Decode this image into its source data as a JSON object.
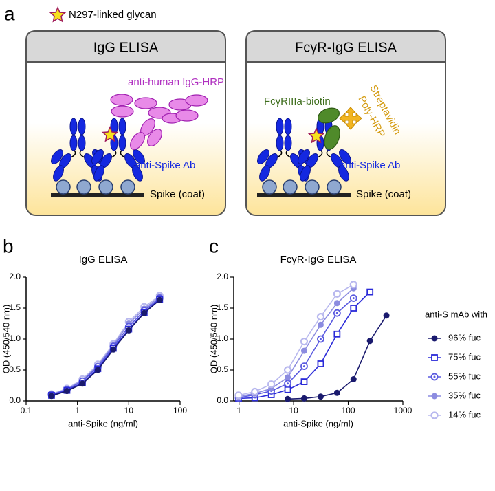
{
  "panels": {
    "a": "a",
    "b": "b",
    "c": "c"
  },
  "legend_star": "N297-linked glycan",
  "assays": [
    {
      "title": "IgG ELISA",
      "detector": "anti-human IgG-HRP",
      "antibody": "anti-Spike Ab",
      "coat": "Spike (coat)"
    },
    {
      "title": "FcγR-IgG ELISA",
      "detector": "FcγRIIIa-biotin",
      "enzyme_line1": "Streptavidin",
      "enzyme_line2": "Poly-HRP",
      "antibody": "anti-Spike Ab",
      "coat": "Spike (coat)"
    }
  ],
  "chart_data": [
    {
      "type": "line",
      "title": "IgG ELISA",
      "xlabel": "anti-Spike (ng/ml)",
      "ylabel": "OD (450/540 nm)",
      "xscale": "log",
      "xlim": [
        0.1,
        100
      ],
      "xticks": [
        0.1,
        1,
        10,
        100
      ],
      "ylim": [
        0,
        2
      ],
      "yticks": [
        {
          "value": 0,
          "label": "0.0"
        },
        0.5,
        {
          "value": 1,
          "label": "1.0"
        },
        1.5,
        {
          "value": 2,
          "label": "2.0"
        }
      ],
      "x": [
        0.3125,
        0.625,
        1.25,
        2.5,
        5,
        10,
        20,
        40
      ],
      "series": [
        {
          "color": "#b8b8ee",
          "marker": "circle-open",
          "values": [
            0.11,
            0.2,
            0.35,
            0.59,
            0.92,
            1.28,
            1.52,
            1.7
          ]
        },
        {
          "color": "#8c8ce0",
          "marker": "circle-filled",
          "values": [
            0.1,
            0.19,
            0.33,
            0.57,
            0.9,
            1.25,
            1.49,
            1.68
          ]
        },
        {
          "color": "#5a5ae0",
          "marker": "circle-dot",
          "values": [
            0.1,
            0.18,
            0.32,
            0.55,
            0.88,
            1.2,
            1.46,
            1.66
          ]
        },
        {
          "color": "#2a2ad8",
          "marker": "square-open",
          "values": [
            0.09,
            0.17,
            0.29,
            0.52,
            0.85,
            1.16,
            1.43,
            1.64
          ]
        },
        {
          "color": "#1a1a6e",
          "marker": "circle-filled",
          "values": [
            0.08,
            0.16,
            0.28,
            0.5,
            0.83,
            1.14,
            1.42,
            1.63
          ]
        }
      ]
    },
    {
      "type": "line",
      "title": "FcγR-IgG ELISA",
      "xlabel": "anti-Spike (ng/ml)",
      "ylabel": "OD (450/540 nm)",
      "xscale": "log",
      "xlim": [
        0.8,
        1000
      ],
      "xticks": [
        1,
        10,
        100,
        1000
      ],
      "ylim": [
        0,
        2
      ],
      "yticks": [
        {
          "value": 0,
          "label": "0.0"
        },
        0.5,
        {
          "value": 1,
          "label": "1.0"
        },
        1.5,
        {
          "value": 2,
          "label": "2.0"
        }
      ],
      "legend": "right",
      "legend_title": "anti-S mAb with",
      "x": [
        0.98,
        1.95,
        3.9,
        7.8,
        15.6,
        31.25,
        62.5,
        125,
        250,
        500
      ],
      "series": [
        {
          "name": "96% fuc",
          "color": "#1a1a6e",
          "marker": "circle-filled",
          "values": [
            null,
            null,
            null,
            0.03,
            0.04,
            0.07,
            0.13,
            0.35,
            0.97,
            1.38
          ]
        },
        {
          "name": "75% fuc",
          "color": "#2a2ad8",
          "marker": "square-open",
          "values": [
            0.04,
            0.05,
            0.1,
            0.18,
            0.31,
            0.6,
            1.08,
            1.5,
            1.76,
            null
          ]
        },
        {
          "name": "55% fuc",
          "color": "#5a5ae0",
          "marker": "circle-dot",
          "values": [
            0.05,
            0.1,
            0.16,
            0.28,
            0.56,
            1.0,
            1.42,
            1.66,
            null,
            null
          ]
        },
        {
          "name": "35% fuc",
          "color": "#8c8ce0",
          "marker": "circle-filled",
          "values": [
            0.07,
            0.12,
            0.2,
            0.38,
            0.81,
            1.23,
            1.58,
            1.82,
            null,
            null
          ]
        },
        {
          "name": "14% fuc",
          "color": "#b8b8ee",
          "marker": "circle-open",
          "values": [
            0.09,
            0.15,
            0.27,
            0.5,
            0.96,
            1.36,
            1.73,
            1.88,
            null,
            null
          ]
        }
      ]
    }
  ]
}
